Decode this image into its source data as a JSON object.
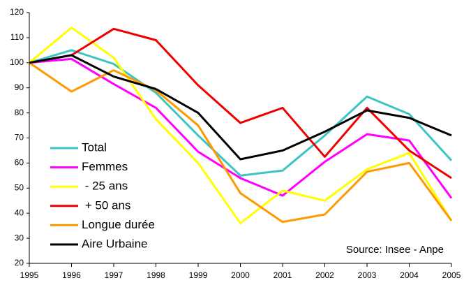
{
  "chart_data": {
    "type": "line",
    "x": [
      1995,
      1996,
      1997,
      1998,
      1999,
      2000,
      2001,
      2002,
      2003,
      2004,
      2005
    ],
    "xlim": [
      1995,
      2005
    ],
    "xticks": [
      1995,
      1996,
      1997,
      1998,
      1999,
      2000,
      2001,
      2002,
      2003,
      2004,
      2005
    ],
    "ylim": [
      20,
      120
    ],
    "yticks": [
      20,
      30,
      40,
      50,
      60,
      70,
      80,
      90,
      100,
      110,
      120
    ],
    "grid": false,
    "legend": "lower left",
    "annotation": "Source: Insee - Anpe",
    "series": [
      {
        "name": "Total",
        "color": "#3fc4c4",
        "values": [
          100,
          105,
          99.5,
          88,
          71,
          55,
          57,
          71,
          86.5,
          79.5,
          61
        ]
      },
      {
        "name": "Femmes",
        "color": "#ff00ff",
        "values": [
          100,
          101.5,
          91.5,
          82,
          64.5,
          54,
          47,
          60.5,
          71.5,
          69,
          46
        ]
      },
      {
        "name": " - 25 ans",
        "color": "#ffff00",
        "values": [
          100,
          114,
          102,
          77.5,
          60,
          36,
          49,
          45,
          57.5,
          64,
          37
        ]
      },
      {
        "name": " + 50 ans",
        "color": "#ee0000",
        "values": [
          100,
          103,
          113.5,
          109,
          91,
          76,
          82,
          62.5,
          82,
          65,
          54
        ]
      },
      {
        "name": "Longue durée",
        "color": "#ff9900",
        "values": [
          100,
          88.5,
          97,
          89,
          75,
          48,
          36.5,
          39.5,
          56.5,
          60,
          37
        ]
      },
      {
        "name": "Aire Urbaine",
        "color": "#000000",
        "values": [
          100,
          103,
          94.5,
          89.5,
          80,
          61.5,
          65,
          72.5,
          81,
          78,
          71
        ]
      }
    ]
  }
}
